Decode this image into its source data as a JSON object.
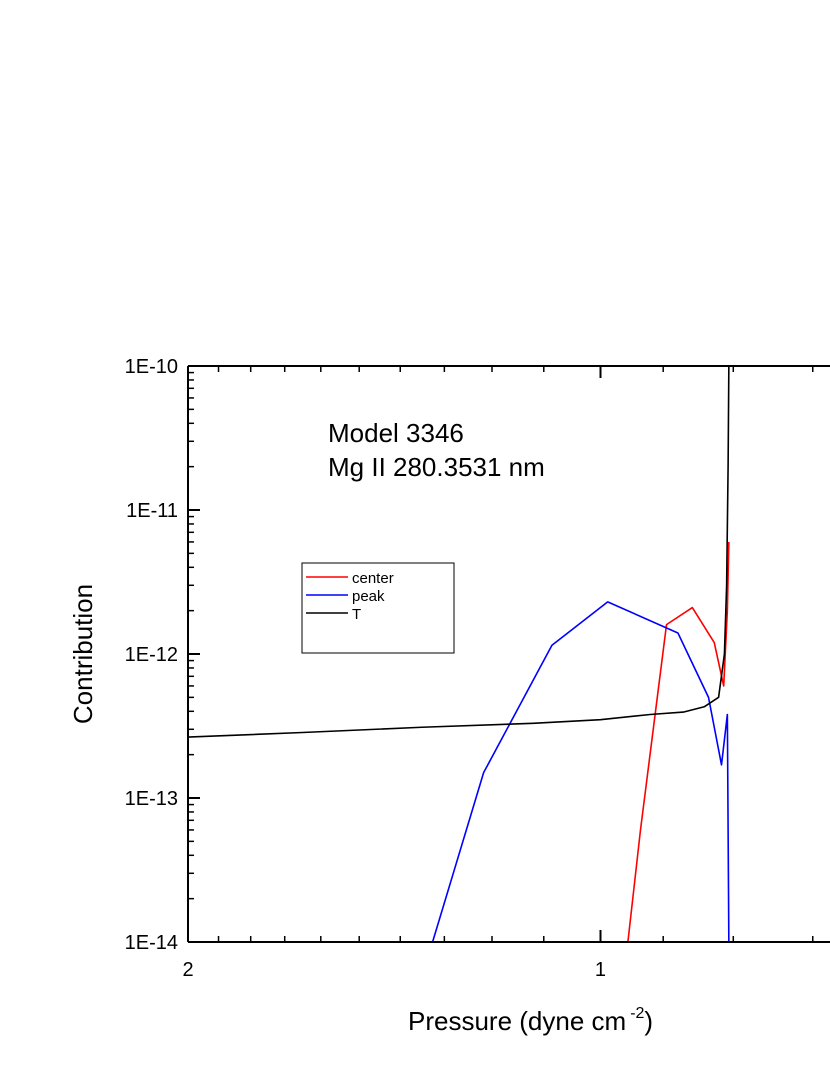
{
  "chart_data": {
    "type": "line",
    "annotation": [
      "Model 3346",
      "Mg II 280.3531 nm"
    ],
    "xlabel_main": "Pressure (dyne cm",
    "xlabel_exp": "-2",
    "xlabel_close": ")",
    "ylabel": "Contribution",
    "x_scale": "log",
    "x_reversed": true,
    "xlim": [
      2,
      0.68
    ],
    "y_scale": "log",
    "ylim": [
      1e-14,
      1e-10
    ],
    "x_ticks": [
      {
        "value": 2,
        "label": "2"
      },
      {
        "value": 1,
        "label": "1"
      }
    ],
    "y_ticks": [
      {
        "value": 1e-10,
        "label": "1E-10"
      },
      {
        "value": 1e-11,
        "label": "1E-11"
      },
      {
        "value": 1e-12,
        "label": "1E-12"
      },
      {
        "value": 1e-13,
        "label": "1E-13"
      },
      {
        "value": 1e-14,
        "label": "1E-14"
      }
    ],
    "legend_position": "upper-left",
    "series": [
      {
        "name": "center",
        "color": "#ff0000",
        "x": [
          0.955,
          0.935,
          0.895,
          0.857,
          0.826,
          0.813,
          0.808,
          0.806
        ],
        "y": [
          1e-14,
          6e-14,
          1.6e-12,
          2.1e-12,
          1.2e-12,
          6e-13,
          2e-12,
          6e-12
        ]
      },
      {
        "name": "peak",
        "color": "#0000ff",
        "x": [
          1.326,
          1.217,
          1.085,
          0.988,
          0.878,
          0.834,
          0.816,
          0.808,
          0.806
        ],
        "y": [
          1e-14,
          1.5e-13,
          1.15e-12,
          2.3e-12,
          1.4e-12,
          5e-13,
          1.7e-13,
          3.8e-13,
          1e-14
        ]
      },
      {
        "name": "T",
        "color": "#000000",
        "x": [
          2.0,
          1.65,
          1.35,
          1.12,
          1.0,
          0.92,
          0.87,
          0.84,
          0.82,
          0.812,
          0.809,
          0.807,
          0.806
        ],
        "y": [
          2.65e-13,
          2.85e-13,
          3.1e-13,
          3.3e-13,
          3.5e-13,
          3.8e-13,
          3.95e-13,
          4.3e-13,
          5e-13,
          1e-12,
          3e-12,
          2e-11,
          1e-10
        ]
      }
    ]
  }
}
